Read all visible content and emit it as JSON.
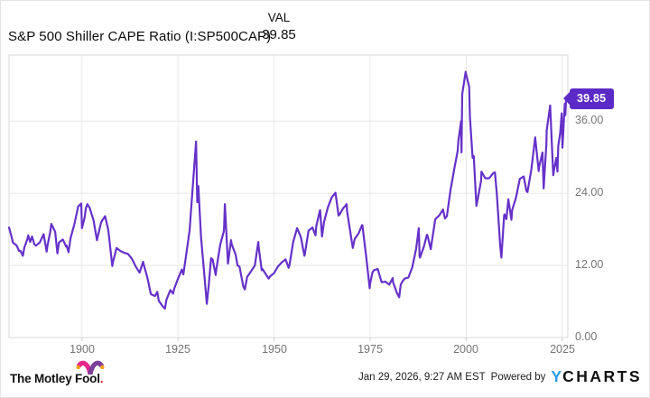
{
  "header": {
    "title": "S&P 500 Shiller CAPE Ratio (I:SP500CAP)",
    "val_label": "VAL",
    "val_value": "39.85"
  },
  "chart_data": {
    "type": "line",
    "title": "S&P 500 Shiller CAPE Ratio (I:SP500CAP)",
    "series_name": "S&P 500 Shiller CAPE Ratio",
    "current_value": 39.85,
    "current_value_label": "39.85",
    "xlim": [
      1881,
      2026.5
    ],
    "ylim": [
      0,
      47
    ],
    "x_ticks": [
      1900,
      1925,
      1950,
      1975,
      2000,
      2025
    ],
    "y_ticks": [
      0,
      12,
      24,
      36
    ],
    "y_tick_labels": [
      "0.00",
      "12.00",
      "24.00",
      "36.00"
    ],
    "grid": true,
    "legend_position": "none",
    "line_color": "#6531c9",
    "colors": {
      "grid": "#e8e8e8",
      "border": "#d9d9d9",
      "tick": "#cfcfcf",
      "axis_text": "#757575"
    },
    "points": [
      [
        1881,
        18.3
      ],
      [
        1881.6,
        16.9
      ],
      [
        1882,
        15.8
      ],
      [
        1883,
        15.3
      ],
      [
        1883.6,
        14.4
      ],
      [
        1884,
        14.4
      ],
      [
        1884.6,
        13.6
      ],
      [
        1885,
        15.0
      ],
      [
        1885.8,
        16.4
      ],
      [
        1886,
        17.0
      ],
      [
        1886.5,
        15.9
      ],
      [
        1887,
        16.8
      ],
      [
        1887.6,
        15.5
      ],
      [
        1888,
        15.3
      ],
      [
        1889,
        15.8
      ],
      [
        1890,
        17.2
      ],
      [
        1890.8,
        14.3
      ],
      [
        1891,
        15.2
      ],
      [
        1891.8,
        17.8
      ],
      [
        1892,
        18.9
      ],
      [
        1893,
        17.6
      ],
      [
        1893.6,
        14.0
      ],
      [
        1894,
        15.8
      ],
      [
        1895,
        16.3
      ],
      [
        1895.9,
        15.1
      ],
      [
        1896,
        15.3
      ],
      [
        1896.5,
        14.2
      ],
      [
        1897,
        16.5
      ],
      [
        1898,
        18.8
      ],
      [
        1899,
        21.8
      ],
      [
        1899.8,
        22.3
      ],
      [
        1900,
        18.2
      ],
      [
        1900.7,
        20.0
      ],
      [
        1901,
        21.5
      ],
      [
        1901.4,
        22.2
      ],
      [
        1902,
        21.6
      ],
      [
        1903,
        19.5
      ],
      [
        1903.9,
        16.2
      ],
      [
        1904,
        16.5
      ],
      [
        1905,
        19.2
      ],
      [
        1906,
        20.2
      ],
      [
        1906.8,
        18.0
      ],
      [
        1907,
        17.0
      ],
      [
        1907.9,
        11.9
      ],
      [
        1908,
        12.4
      ],
      [
        1909,
        14.9
      ],
      [
        1910,
        14.4
      ],
      [
        1911,
        14.1
      ],
      [
        1912,
        13.9
      ],
      [
        1913,
        13.1
      ],
      [
        1914,
        11.8
      ],
      [
        1915,
        10.8
      ],
      [
        1915.9,
        12.6
      ],
      [
        1916,
        12.3
      ],
      [
        1917,
        10.0
      ],
      [
        1917.9,
        7.3
      ],
      [
        1918,
        7.2
      ],
      [
        1919,
        6.9
      ],
      [
        1919.6,
        7.6
      ],
      [
        1920,
        6.1
      ],
      [
        1921,
        5.2
      ],
      [
        1921.6,
        4.8
      ],
      [
        1922,
        6.3
      ],
      [
        1923,
        7.9
      ],
      [
        1923.7,
        7.3
      ],
      [
        1924,
        8.1
      ],
      [
        1925,
        9.8
      ],
      [
        1926,
        11.3
      ],
      [
        1926.4,
        10.5
      ],
      [
        1927,
        13.2
      ],
      [
        1928,
        17.8
      ],
      [
        1929,
        26.5
      ],
      [
        1929.7,
        32.6
      ],
      [
        1930,
        22.5
      ],
      [
        1930.3,
        25.2
      ],
      [
        1931,
        16.7
      ],
      [
        1932,
        9.3
      ],
      [
        1932.5,
        5.6
      ],
      [
        1933,
        8.7
      ],
      [
        1933.6,
        13.2
      ],
      [
        1934,
        13.0
      ],
      [
        1934.8,
        10.4
      ],
      [
        1935,
        11.4
      ],
      [
        1936,
        15.5
      ],
      [
        1936.9,
        17.6
      ],
      [
        1937,
        18.2
      ],
      [
        1937.2,
        22.2
      ],
      [
        1938,
        12.3
      ],
      [
        1938.8,
        16.2
      ],
      [
        1939,
        15.5
      ],
      [
        1940,
        13.8
      ],
      [
        1940.5,
        12.0
      ],
      [
        1941,
        11.8
      ],
      [
        1942,
        8.5
      ],
      [
        1942.4,
        8.0
      ],
      [
        1943,
        10.1
      ],
      [
        1944,
        11.0
      ],
      [
        1945,
        12.0
      ],
      [
        1945.9,
        15.9
      ],
      [
        1946,
        15.1
      ],
      [
        1946.8,
        11.2
      ],
      [
        1947,
        11.4
      ],
      [
        1948,
        10.4
      ],
      [
        1948.6,
        9.8
      ],
      [
        1949,
        10.2
      ],
      [
        1950,
        10.7
      ],
      [
        1951,
        11.8
      ],
      [
        1952,
        12.5
      ],
      [
        1953,
        13.0
      ],
      [
        1953.8,
        11.6
      ],
      [
        1954,
        12.0
      ],
      [
        1955,
        15.9
      ],
      [
        1956,
        18.2
      ],
      [
        1957,
        16.7
      ],
      [
        1957.9,
        13.6
      ],
      [
        1958,
        13.8
      ],
      [
        1959,
        17.8
      ],
      [
        1960,
        18.3
      ],
      [
        1960.8,
        17.0
      ],
      [
        1961,
        18.5
      ],
      [
        1961.9,
        21.0
      ],
      [
        1962,
        21.2
      ],
      [
        1962.5,
        16.8
      ],
      [
        1963,
        19.2
      ],
      [
        1964,
        21.6
      ],
      [
        1965,
        23.3
      ],
      [
        1966,
        24.1
      ],
      [
        1966.8,
        20.3
      ],
      [
        1967,
        20.4
      ],
      [
        1968,
        21.5
      ],
      [
        1968.9,
        22.2
      ],
      [
        1969,
        21.1
      ],
      [
        1970,
        17.0
      ],
      [
        1970.5,
        14.9
      ],
      [
        1971,
        16.4
      ],
      [
        1972,
        17.3
      ],
      [
        1972.9,
        18.7
      ],
      [
        1973,
        18.7
      ],
      [
        1974,
        13.5
      ],
      [
        1974.9,
        8.2
      ],
      [
        1975,
        8.9
      ],
      [
        1975.6,
        10.8
      ],
      [
        1976,
        11.2
      ],
      [
        1977,
        11.4
      ],
      [
        1978,
        9.2
      ],
      [
        1979,
        9.3
      ],
      [
        1980,
        8.8
      ],
      [
        1980.9,
        9.9
      ],
      [
        1981,
        9.2
      ],
      [
        1982,
        7.4
      ],
      [
        1982.6,
        6.7
      ],
      [
        1983,
        8.8
      ],
      [
        1983.5,
        9.4
      ],
      [
        1984,
        9.8
      ],
      [
        1985,
        10.0
      ],
      [
        1986,
        11.7
      ],
      [
        1987,
        14.8
      ],
      [
        1987.7,
        18.2
      ],
      [
        1987.9,
        13.5
      ],
      [
        1988,
        13.3
      ],
      [
        1989,
        15.1
      ],
      [
        1989.8,
        17.1
      ],
      [
        1990,
        16.9
      ],
      [
        1990.8,
        14.7
      ],
      [
        1991,
        15.6
      ],
      [
        1992,
        19.7
      ],
      [
        1993,
        20.3
      ],
      [
        1994,
        21.3
      ],
      [
        1994.5,
        19.8
      ],
      [
        1995,
        20.2
      ],
      [
        1996,
        24.7
      ],
      [
        1997,
        28.3
      ],
      [
        1997.8,
        31.0
      ],
      [
        1998,
        32.8
      ],
      [
        1998.7,
        36.0
      ],
      [
        1998.8,
        30.8
      ],
      [
        1999,
        40.5
      ],
      [
        1999.9,
        44.2
      ],
      [
        2000,
        43.8
      ],
      [
        2000.8,
        41.7
      ],
      [
        2001,
        36.8
      ],
      [
        2001.7,
        29.9
      ],
      [
        2002,
        30.2
      ],
      [
        2002.7,
        21.9
      ],
      [
        2003,
        22.9
      ],
      [
        2003.9,
        26.1
      ],
      [
        2004,
        27.6
      ],
      [
        2005,
        26.5
      ],
      [
        2006,
        26.5
      ],
      [
        2007,
        27.3
      ],
      [
        2007.5,
        27.5
      ],
      [
        2008,
        24.0
      ],
      [
        2008.9,
        15.2
      ],
      [
        2009.2,
        13.3
      ],
      [
        2009.9,
        20.3
      ],
      [
        2010,
        20.5
      ],
      [
        2010.5,
        19.7
      ],
      [
        2011,
        23.0
      ],
      [
        2011.8,
        19.6
      ],
      [
        2012,
        21.2
      ],
      [
        2013,
        23.3
      ],
      [
        2014,
        26.4
      ],
      [
        2015,
        26.8
      ],
      [
        2015.7,
        24.4
      ],
      [
        2016,
        24.2
      ],
      [
        2017,
        28.0
      ],
      [
        2018,
        33.3
      ],
      [
        2018.9,
        27.7
      ],
      [
        2019,
        28.3
      ],
      [
        2019.9,
        30.8
      ],
      [
        2020.2,
        24.8
      ],
      [
        2020.9,
        32.1
      ],
      [
        2021,
        34.5
      ],
      [
        2021.9,
        38.6
      ],
      [
        2022,
        36.9
      ],
      [
        2022.7,
        27.0
      ],
      [
        2023,
        28.2
      ],
      [
        2023.5,
        29.9
      ],
      [
        2023.8,
        27.6
      ],
      [
        2024,
        31.9
      ],
      [
        2024.5,
        34.0
      ],
      [
        2024.9,
        37.3
      ],
      [
        2025.1,
        31.6
      ],
      [
        2025.3,
        34.0
      ],
      [
        2025.5,
        36.4
      ],
      [
        2025.7,
        38.9
      ],
      [
        2025.85,
        37.0
      ],
      [
        2026.05,
        39.85
      ]
    ]
  },
  "footer": {
    "motley_fool_label": "The Motley Fool",
    "motley_fool_dot": ".",
    "timestamp": "Jan 29, 2026, 9:27 AM EST",
    "powered_by": "Powered by",
    "ycharts_y": "Y",
    "ycharts_rest": "CHARTS"
  }
}
